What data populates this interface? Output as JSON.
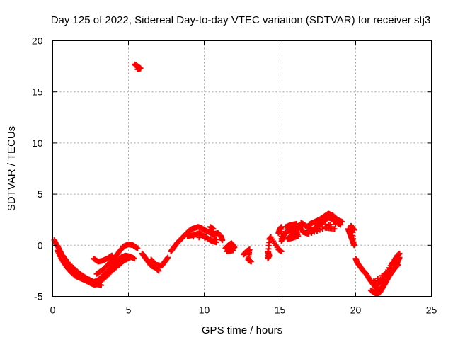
{
  "chart_data": {
    "type": "scatter",
    "title": "Day 125 of 2022, Sidereal Day-to-day VTEC variation (SDTVAR) for receiver stj3",
    "xlabel": "GPS time / hours",
    "ylabel": "SDTVAR / TECUs",
    "xlim": [
      0,
      25
    ],
    "ylim": [
      -5,
      20
    ],
    "xticks": [
      "0",
      "5",
      "10",
      "15",
      "20",
      "25"
    ],
    "yticks": [
      "-5",
      "0",
      "5",
      "10",
      "15",
      "20"
    ],
    "grid": true,
    "marker": "+",
    "color": "#ff0000",
    "series": [
      {
        "name": "SDTVAR",
        "tracks": [
          [
            [
              0.1,
              0.5
            ],
            [
              0.2,
              0.2
            ],
            [
              0.4,
              -0.3
            ],
            [
              0.6,
              -0.9
            ],
            [
              0.9,
              -1.6
            ],
            [
              1.2,
              -2.2
            ],
            [
              1.5,
              -2.7
            ],
            [
              1.8,
              -3.1
            ],
            [
              2.1,
              -3.4
            ],
            [
              2.5,
              -3.7
            ],
            [
              2.8,
              -3.9
            ],
            [
              3.1,
              -3.6
            ],
            [
              3.5,
              -3.1
            ],
            [
              3.9,
              -2.5
            ],
            [
              4.3,
              -2.0
            ],
            [
              4.7,
              -1.5
            ],
            [
              5.1,
              -1.2
            ]
          ],
          [
            [
              0.3,
              -0.5
            ],
            [
              0.6,
              -1.4
            ],
            [
              0.9,
              -2.1
            ],
            [
              1.2,
              -2.6
            ],
            [
              1.5,
              -3.0
            ],
            [
              1.8,
              -3.2
            ],
            [
              2.1,
              -3.4
            ],
            [
              2.4,
              -3.5
            ],
            [
              2.7,
              -3.6
            ],
            [
              3.0,
              -3.4
            ],
            [
              3.3,
              -3.0
            ],
            [
              3.6,
              -2.6
            ],
            [
              3.9,
              -2.1
            ],
            [
              4.2,
              -1.6
            ],
            [
              4.5,
              -1.2
            ],
            [
              4.8,
              -1.0
            ],
            [
              5.1,
              -1.1
            ],
            [
              5.4,
              -1.3
            ]
          ],
          [
            [
              0.6,
              -0.9
            ],
            [
              1.0,
              -1.7
            ],
            [
              1.4,
              -2.3
            ],
            [
              1.8,
              -2.8
            ],
            [
              2.2,
              -3.2
            ],
            [
              2.6,
              -3.5
            ],
            [
              2.9,
              -3.8
            ],
            [
              3.2,
              -3.9
            ]
          ],
          [
            [
              2.9,
              -2.8
            ],
            [
              3.3,
              -2.4
            ],
            [
              3.7,
              -1.8
            ],
            [
              4.1,
              -1.2
            ],
            [
              4.4,
              -0.6
            ],
            [
              4.7,
              -0.1
            ],
            [
              5.0,
              0.1
            ],
            [
              5.3,
              0.0
            ],
            [
              5.6,
              -0.3
            ]
          ],
          [
            [
              2.7,
              -1.3
            ],
            [
              3.0,
              -1.6
            ],
            [
              3.3,
              -1.5
            ],
            [
              3.6,
              -1.3
            ],
            [
              3.9,
              -1.0
            ]
          ],
          [
            [
              5.4,
              17.7
            ],
            [
              5.5,
              17.6
            ],
            [
              5.6,
              17.5
            ],
            [
              5.8,
              17.3
            ],
            [
              5.6,
              17.2
            ]
          ],
          [
            [
              5.9,
              -0.8
            ],
            [
              6.1,
              -1.2
            ],
            [
              6.3,
              -1.6
            ],
            [
              6.5,
              -2.0
            ],
            [
              6.8,
              -2.2
            ],
            [
              7.0,
              -2.5
            ],
            [
              6.5,
              -1.4
            ],
            [
              6.8,
              -1.9
            ],
            [
              7.2,
              -2.0
            ],
            [
              7.4,
              -1.6
            ],
            [
              7.6,
              -1.2
            ]
          ],
          [
            [
              7.8,
              -0.6
            ],
            [
              8.0,
              -0.2
            ],
            [
              8.2,
              0.2
            ],
            [
              8.4,
              0.5
            ],
            [
              8.6,
              0.8
            ],
            [
              8.8,
              1.1
            ],
            [
              9.0,
              1.4
            ],
            [
              9.2,
              1.6
            ],
            [
              9.4,
              1.7
            ],
            [
              9.6,
              1.8
            ],
            [
              9.8,
              1.7
            ],
            [
              10.0,
              1.5
            ],
            [
              10.3,
              1.3
            ],
            [
              10.6,
              1.1
            ],
            [
              10.9,
              1.2
            ],
            [
              11.1,
              0.9
            ],
            [
              11.2,
              0.5
            ],
            [
              8.9,
              0.9
            ],
            [
              9.3,
              1.0
            ],
            [
              9.7,
              1.2
            ],
            [
              10.2,
              0.7
            ],
            [
              10.5,
              0.4
            ],
            [
              10.8,
              0.3
            ],
            [
              10.4,
              1.8
            ],
            [
              10.6,
              1.6
            ]
          ],
          [
            [
              11.4,
              -0.3
            ],
            [
              11.6,
              0.0
            ],
            [
              11.8,
              0.2
            ],
            [
              12.0,
              -0.2
            ],
            [
              11.7,
              -0.4
            ],
            [
              11.5,
              -0.6
            ],
            [
              11.9,
              -0.5
            ]
          ],
          [
            [
              12.6,
              -0.9
            ],
            [
              12.8,
              -0.6
            ],
            [
              13.0,
              -0.4
            ],
            [
              12.9,
              -1.4
            ],
            [
              13.1,
              -1.6
            ]
          ],
          [
            [
              14.2,
              -0.6
            ],
            [
              14.3,
              -1.0
            ],
            [
              14.2,
              -1.3
            ],
            [
              14.3,
              0.6
            ],
            [
              14.4,
              0.8
            ],
            [
              14.9,
              -0.4
            ],
            [
              15.1,
              -0.6
            ]
          ],
          [
            [
              14.9,
              1.2
            ],
            [
              15.0,
              1.6
            ],
            [
              15.1,
              1.8
            ],
            [
              15.1,
              0.4
            ],
            [
              15.3,
              1.1
            ],
            [
              15.5,
              1.4
            ],
            [
              15.7,
              1.5
            ],
            [
              15.9,
              1.3
            ],
            [
              15.5,
              0.6
            ],
            [
              15.8,
              0.7
            ],
            [
              16.2,
              0.9
            ],
            [
              16.0,
              1.8
            ],
            [
              16.3,
              1.9
            ],
            [
              16.4,
              1.5
            ],
            [
              15.4,
              1.8
            ],
            [
              15.7,
              2.0
            ],
            [
              16.1,
              2.1
            ]
          ],
          [
            [
              16.4,
              2.2
            ],
            [
              16.6,
              2.0
            ],
            [
              16.8,
              1.8
            ],
            [
              17.0,
              1.6
            ],
            [
              17.2,
              1.5
            ],
            [
              17.4,
              1.8
            ],
            [
              17.6,
              2.0
            ],
            [
              17.8,
              2.3
            ],
            [
              18.0,
              2.5
            ],
            [
              18.2,
              2.7
            ],
            [
              18.4,
              2.6
            ],
            [
              18.6,
              2.4
            ],
            [
              18.8,
              2.2
            ],
            [
              19.0,
              2.0
            ],
            [
              17.0,
              2.1
            ],
            [
              17.3,
              2.3
            ],
            [
              17.6,
              2.5
            ],
            [
              17.9,
              2.8
            ],
            [
              18.2,
              3.1
            ],
            [
              18.5,
              2.9
            ],
            [
              18.8,
              2.5
            ],
            [
              19.1,
              2.3
            ],
            [
              16.5,
              1.3
            ],
            [
              16.9,
              1.1
            ],
            [
              18.0,
              1.7
            ],
            [
              18.6,
              1.6
            ]
          ],
          [
            [
              19.5,
              1.6
            ],
            [
              19.6,
              1.2
            ],
            [
              19.7,
              0.8
            ],
            [
              19.8,
              0.4
            ],
            [
              19.9,
              0.0
            ],
            [
              19.7,
              1.9
            ],
            [
              19.9,
              1.5
            ]
          ],
          [
            [
              20.0,
              -1.3
            ],
            [
              20.1,
              -1.7
            ],
            [
              20.3,
              -2.1
            ],
            [
              20.5,
              -2.5
            ],
            [
              20.7,
              -2.8
            ],
            [
              20.9,
              -3.3
            ],
            [
              21.1,
              -3.7
            ],
            [
              21.3,
              -4.1
            ],
            [
              21.5,
              -4.4
            ],
            [
              21.7,
              -4.2
            ],
            [
              21.9,
              -3.8
            ],
            [
              22.1,
              -3.3
            ],
            [
              22.3,
              -2.8
            ],
            [
              22.5,
              -2.4
            ],
            [
              22.7,
              -1.9
            ],
            [
              22.8,
              -1.5
            ],
            [
              22.9,
              -1.2
            ],
            [
              21.0,
              -4.4
            ],
            [
              21.2,
              -4.6
            ],
            [
              21.4,
              -4.8
            ],
            [
              21.6,
              -4.6
            ],
            [
              21.8,
              -4.1
            ],
            [
              22.0,
              -3.6
            ],
            [
              22.2,
              -3.0
            ],
            [
              22.4,
              -2.6
            ],
            [
              22.6,
              -2.2
            ],
            [
              22.8,
              -1.9
            ],
            [
              21.2,
              -3.5
            ],
            [
              21.5,
              -3.8
            ],
            [
              21.8,
              -3.3
            ],
            [
              22.3,
              -2.0
            ],
            [
              22.7,
              -1.1
            ],
            [
              22.9,
              -0.8
            ]
          ]
        ]
      }
    ]
  }
}
